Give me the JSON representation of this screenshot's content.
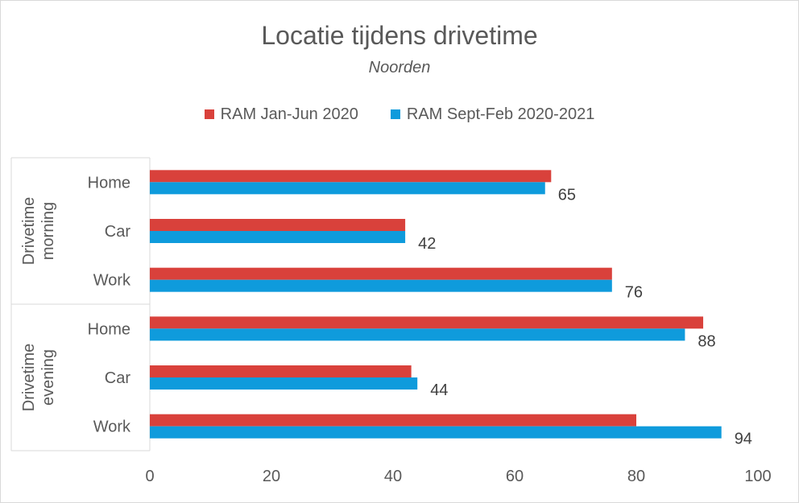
{
  "chart_data": {
    "type": "bar",
    "orientation": "horizontal",
    "title": "Locatie tijdens drivetime",
    "subtitle": "Noorden",
    "groups": [
      {
        "label": "Drivetime morning",
        "label_lines": [
          "Drivetime",
          "morning"
        ],
        "categories": [
          "Home",
          "Car",
          "Work"
        ]
      },
      {
        "label": "Drivetime evening",
        "label_lines": [
          "Drivetime",
          "evening"
        ],
        "categories": [
          "Home",
          "Car",
          "Work"
        ]
      }
    ],
    "categories": [
      "Home",
      "Car",
      "Work",
      "Home",
      "Car",
      "Work"
    ],
    "series": [
      {
        "name": "RAM Jan-Jun 2020",
        "color": "#d9413b",
        "values": [
          66,
          42,
          76,
          91,
          43,
          80
        ]
      },
      {
        "name": "RAM Sept-Feb 2020-2021",
        "color": "#0f9bdc",
        "values": [
          65,
          42,
          76,
          88,
          44,
          94
        ]
      }
    ],
    "data_labels_series": 1,
    "xlim": [
      0,
      100
    ],
    "xticks": [
      0,
      20,
      40,
      60,
      80,
      100
    ],
    "grid": false,
    "legend_position": "top"
  }
}
